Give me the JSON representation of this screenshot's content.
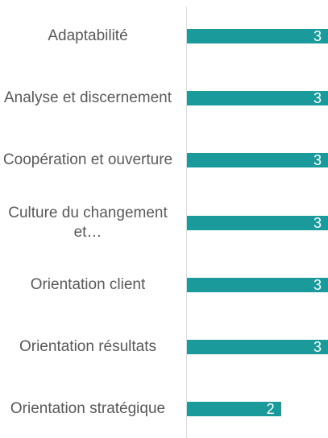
{
  "chart_data": {
    "type": "bar",
    "orientation": "horizontal",
    "categories": [
      "Adaptabilité",
      "Analyse et discernement",
      "Coopération et ouverture",
      "Culture du changement et…",
      "Orientation client",
      "Orientation résultats",
      "Orientation stratégique"
    ],
    "values": [
      3,
      3,
      3,
      3,
      3,
      3,
      2
    ],
    "color": "#1a9a9a",
    "xlim": [
      0,
      3
    ]
  }
}
